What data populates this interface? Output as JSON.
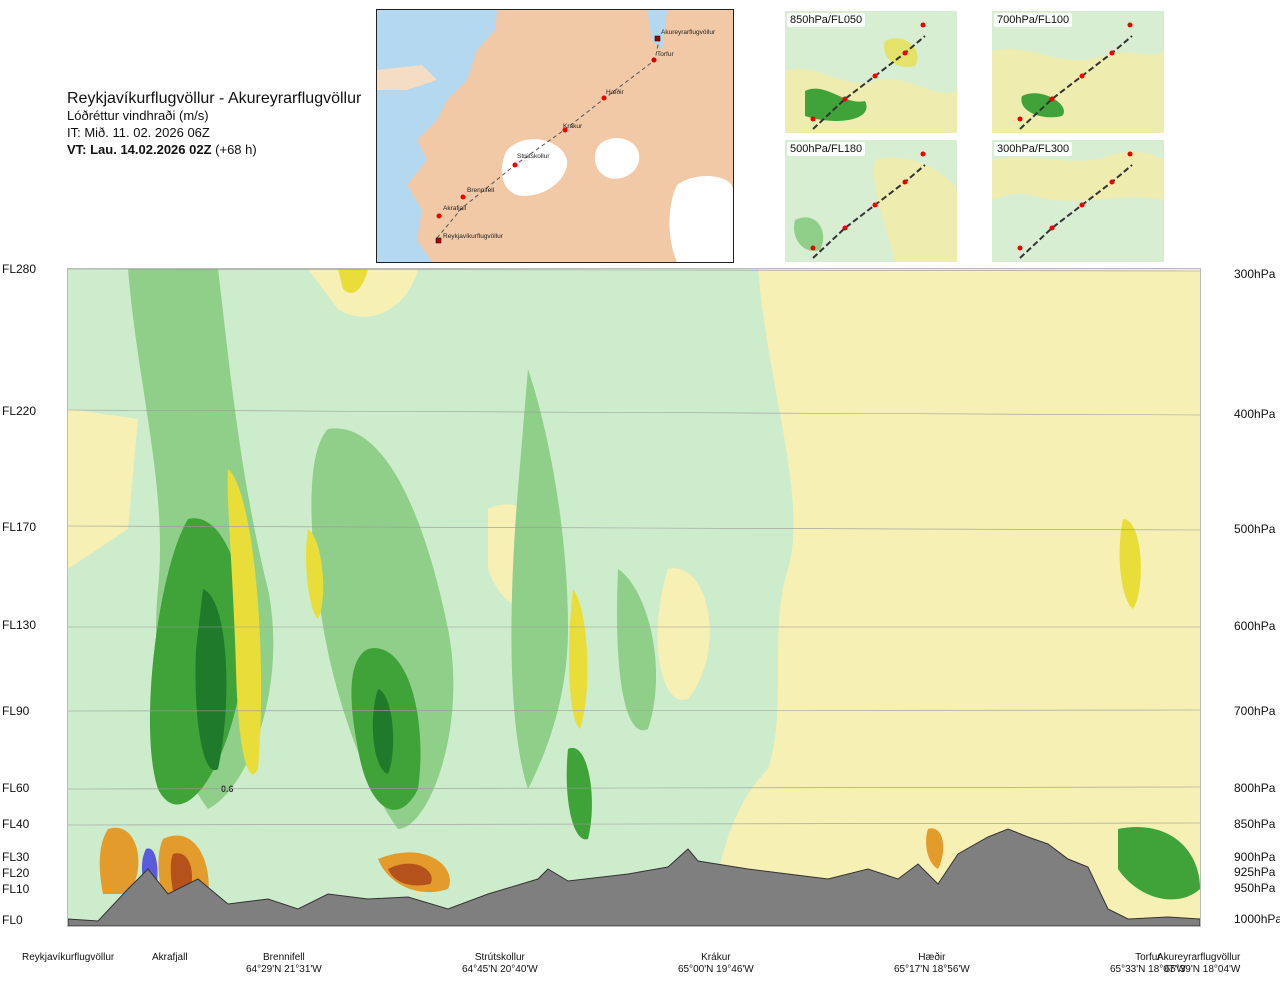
{
  "header": {
    "route": "Reykjavíkurflugvöllur - Akureyrarflugvöllur",
    "parameter": "Lóðréttur vindhraði (m/s)",
    "issue_time": "IT: Mið. 11. 02. 2026 06Z",
    "valid_prefix": "VT: Lau. 14.02.2026 02Z",
    "valid_suffix": "(+68 h)"
  },
  "map": {
    "waypoints": [
      "Akureyrarflugvöllur",
      "Torfur",
      "Hæðir",
      "Krákur",
      "Strútskollur",
      "Brennifell",
      "Akrafjall",
      "Reykjavíkurflugvöllur"
    ]
  },
  "mini_maps": [
    {
      "label": "850hPa/FL050"
    },
    {
      "label": "700hPa/FL100"
    },
    {
      "label": "500hPa/FL180"
    },
    {
      "label": "300hPa/FL300"
    }
  ],
  "flight_levels": [
    {
      "fl": "FL280",
      "hpa": "300hPa"
    },
    {
      "fl": "FL220",
      "hpa": "400hPa"
    },
    {
      "fl": "FL170",
      "hpa": "500hPa"
    },
    {
      "fl": "FL130",
      "hpa": "600hPa"
    },
    {
      "fl": "FL90",
      "hpa": "700hPa"
    },
    {
      "fl": "FL60",
      "hpa": "800hPa"
    },
    {
      "fl": "FL40",
      "hpa": "850hPa"
    },
    {
      "fl": "FL30",
      "hpa": "900hPa"
    },
    {
      "fl": "FL20",
      "hpa": "925hPa"
    },
    {
      "fl": "FL10",
      "hpa": "950hPa"
    },
    {
      "fl": "FL0",
      "hpa": "1000hPa"
    }
  ],
  "locations": [
    {
      "name": "Reykjavíkurflugvöllur",
      "coord": ""
    },
    {
      "name": "Akrafjall",
      "coord": ""
    },
    {
      "name": "Brennifell",
      "coord": "64°29'N 21°31'W"
    },
    {
      "name": "Strútskollur",
      "coord": "64°45'N 20°40'W"
    },
    {
      "name": "Krákur",
      "coord": "65°00'N 19°46'W"
    },
    {
      "name": "Hæðir",
      "coord": "65°17'N 18°56'W"
    },
    {
      "name": "Torfur",
      "coord": "65°33'N 18°07'W"
    },
    {
      "name": "Akureyrarflugvöllur",
      "coord": "65°39'N 18°04'W"
    }
  ],
  "annotation": "0.6",
  "colors": {
    "light_green": "#cdeccb",
    "mid_green": "#8fcf8a",
    "green": "#3fa33a",
    "dark_green": "#1f7a2b",
    "pale_yellow": "#f6f0b4",
    "yellow": "#e9dd3a",
    "orange": "#e39b2c",
    "brown": "#b5521c",
    "terrain": "#7f7f7f",
    "sea": "#b3d8f0",
    "land": "#f2c9a6"
  }
}
